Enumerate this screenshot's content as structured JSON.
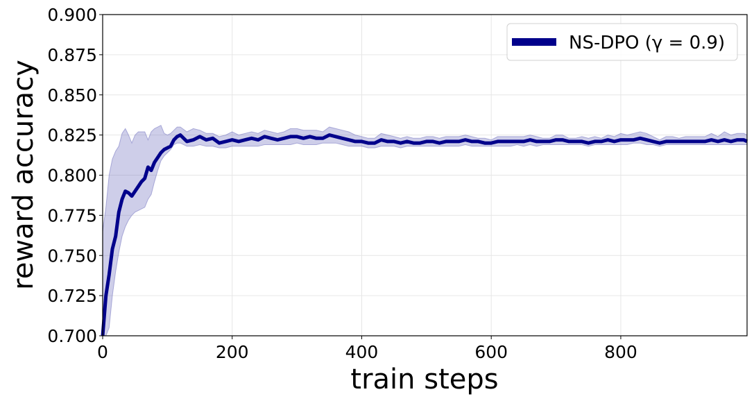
{
  "chart_data": {
    "type": "line",
    "title": "",
    "xlabel": "train steps",
    "ylabel": "reward accuracy",
    "xlim": [
      0,
      995
    ],
    "ylim": [
      0.7,
      0.9
    ],
    "xticks": [
      0,
      200,
      400,
      600,
      800
    ],
    "xtick_labels": [
      "0",
      "200",
      "400",
      "600",
      "800"
    ],
    "yticks": [
      0.7,
      0.725,
      0.75,
      0.775,
      0.8,
      0.825,
      0.85,
      0.875,
      0.9
    ],
    "ytick_labels": [
      "0.700",
      "0.725",
      "0.750",
      "0.775",
      "0.800",
      "0.825",
      "0.850",
      "0.875",
      "0.900"
    ],
    "grid": true,
    "legend_position": "top-right",
    "series": [
      {
        "name": "NS-DPO (γ = 0.9)",
        "color": "#00008b",
        "band_color": "#7f7fc5",
        "x": [
          0,
          5,
          10,
          15,
          20,
          25,
          30,
          35,
          40,
          45,
          50,
          55,
          60,
          65,
          70,
          75,
          80,
          85,
          90,
          95,
          100,
          105,
          110,
          115,
          120,
          130,
          140,
          150,
          160,
          170,
          180,
          190,
          200,
          210,
          220,
          230,
          240,
          250,
          260,
          270,
          280,
          290,
          300,
          310,
          320,
          330,
          340,
          350,
          360,
          370,
          380,
          390,
          400,
          410,
          420,
          430,
          440,
          450,
          460,
          470,
          480,
          490,
          500,
          510,
          520,
          530,
          540,
          550,
          560,
          570,
          580,
          590,
          600,
          610,
          620,
          630,
          640,
          650,
          660,
          670,
          680,
          690,
          700,
          710,
          720,
          730,
          740,
          750,
          760,
          770,
          780,
          790,
          800,
          810,
          820,
          830,
          840,
          850,
          860,
          870,
          880,
          890,
          900,
          910,
          920,
          930,
          940,
          950,
          960,
          970,
          980,
          990,
          995
        ],
        "values": [
          0.7,
          0.725,
          0.738,
          0.754,
          0.762,
          0.777,
          0.785,
          0.79,
          0.789,
          0.787,
          0.79,
          0.793,
          0.796,
          0.798,
          0.805,
          0.803,
          0.808,
          0.811,
          0.814,
          0.816,
          0.817,
          0.818,
          0.822,
          0.824,
          0.825,
          0.821,
          0.822,
          0.824,
          0.822,
          0.823,
          0.82,
          0.821,
          0.822,
          0.821,
          0.822,
          0.823,
          0.822,
          0.824,
          0.823,
          0.822,
          0.823,
          0.824,
          0.824,
          0.823,
          0.824,
          0.823,
          0.823,
          0.825,
          0.824,
          0.823,
          0.822,
          0.821,
          0.821,
          0.82,
          0.82,
          0.822,
          0.821,
          0.821,
          0.82,
          0.821,
          0.82,
          0.82,
          0.821,
          0.821,
          0.82,
          0.821,
          0.821,
          0.821,
          0.822,
          0.821,
          0.821,
          0.82,
          0.82,
          0.821,
          0.821,
          0.821,
          0.821,
          0.821,
          0.822,
          0.821,
          0.821,
          0.821,
          0.822,
          0.822,
          0.821,
          0.821,
          0.821,
          0.82,
          0.821,
          0.821,
          0.822,
          0.821,
          0.822,
          0.822,
          0.822,
          0.823,
          0.822,
          0.821,
          0.82,
          0.821,
          0.821,
          0.821,
          0.821,
          0.821,
          0.821,
          0.821,
          0.822,
          0.821,
          0.822,
          0.821,
          0.822,
          0.822,
          0.821
        ],
        "lower": [
          0.68,
          0.69,
          0.705,
          0.725,
          0.74,
          0.752,
          0.762,
          0.768,
          0.772,
          0.775,
          0.777,
          0.778,
          0.779,
          0.78,
          0.785,
          0.788,
          0.796,
          0.803,
          0.809,
          0.812,
          0.814,
          0.816,
          0.819,
          0.82,
          0.82,
          0.818,
          0.818,
          0.819,
          0.818,
          0.818,
          0.817,
          0.817,
          0.818,
          0.818,
          0.818,
          0.818,
          0.818,
          0.819,
          0.819,
          0.819,
          0.819,
          0.819,
          0.82,
          0.819,
          0.819,
          0.819,
          0.82,
          0.82,
          0.82,
          0.819,
          0.818,
          0.818,
          0.818,
          0.817,
          0.817,
          0.818,
          0.818,
          0.818,
          0.817,
          0.818,
          0.818,
          0.818,
          0.818,
          0.818,
          0.818,
          0.818,
          0.818,
          0.818,
          0.819,
          0.818,
          0.818,
          0.818,
          0.818,
          0.818,
          0.818,
          0.818,
          0.819,
          0.818,
          0.819,
          0.818,
          0.819,
          0.819,
          0.819,
          0.819,
          0.819,
          0.819,
          0.819,
          0.818,
          0.819,
          0.819,
          0.819,
          0.819,
          0.819,
          0.819,
          0.82,
          0.82,
          0.819,
          0.819,
          0.818,
          0.819,
          0.819,
          0.819,
          0.819,
          0.819,
          0.819,
          0.819,
          0.819,
          0.819,
          0.819,
          0.819,
          0.819,
          0.819,
          0.819
        ],
        "upper": [
          0.765,
          0.78,
          0.8,
          0.81,
          0.815,
          0.818,
          0.826,
          0.829,
          0.825,
          0.82,
          0.825,
          0.827,
          0.827,
          0.827,
          0.822,
          0.827,
          0.829,
          0.83,
          0.831,
          0.826,
          0.825,
          0.826,
          0.828,
          0.83,
          0.83,
          0.827,
          0.829,
          0.828,
          0.826,
          0.826,
          0.824,
          0.825,
          0.827,
          0.825,
          0.826,
          0.827,
          0.826,
          0.828,
          0.827,
          0.826,
          0.827,
          0.829,
          0.829,
          0.828,
          0.828,
          0.828,
          0.827,
          0.83,
          0.829,
          0.828,
          0.827,
          0.825,
          0.824,
          0.823,
          0.823,
          0.826,
          0.825,
          0.824,
          0.823,
          0.824,
          0.823,
          0.823,
          0.824,
          0.824,
          0.823,
          0.824,
          0.824,
          0.824,
          0.825,
          0.824,
          0.823,
          0.823,
          0.822,
          0.824,
          0.824,
          0.824,
          0.824,
          0.824,
          0.825,
          0.824,
          0.823,
          0.823,
          0.825,
          0.825,
          0.823,
          0.823,
          0.824,
          0.823,
          0.824,
          0.823,
          0.825,
          0.824,
          0.826,
          0.825,
          0.826,
          0.827,
          0.826,
          0.824,
          0.822,
          0.824,
          0.824,
          0.823,
          0.824,
          0.824,
          0.824,
          0.824,
          0.826,
          0.824,
          0.827,
          0.825,
          0.826,
          0.826,
          0.825
        ]
      }
    ]
  }
}
